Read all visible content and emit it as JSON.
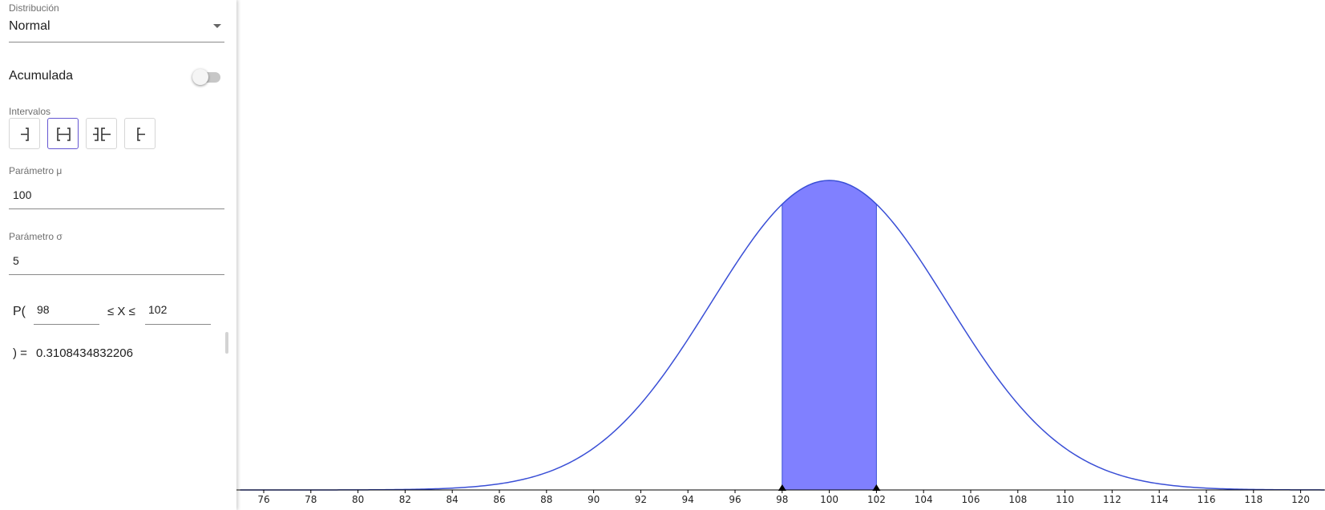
{
  "sidebar": {
    "distribution": {
      "label": "Distribución",
      "value": "Normal"
    },
    "cumulative": {
      "label": "Acumulada",
      "on": false
    },
    "intervals": {
      "label": "Intervalos",
      "buttons": [
        {
          "name": "left-sided",
          "selected": false
        },
        {
          "name": "two-sided",
          "selected": true
        },
        {
          "name": "two-tailed",
          "selected": false
        },
        {
          "name": "right-sided",
          "selected": false
        }
      ]
    },
    "mu": {
      "label": "Parámetro μ",
      "value": "100"
    },
    "sigma": {
      "label": "Parámetro σ",
      "value": "5"
    },
    "probability": {
      "prefix": "P(",
      "lower": "98",
      "middle": "≤ X ≤",
      "upper": "102",
      "result_prefix": ") =",
      "result": "0.3108434832206"
    }
  },
  "colors": {
    "curve": "#3a4fd6",
    "fill": "#8080ff",
    "axis": "#000000"
  },
  "chart_data": {
    "type": "area",
    "distribution": "normal",
    "mu": 100,
    "sigma": 5,
    "xlim": [
      75,
      121
    ],
    "shaded_interval": [
      98,
      102
    ],
    "x_ticks": [
      76,
      78,
      80,
      82,
      84,
      86,
      88,
      90,
      92,
      94,
      96,
      98,
      100,
      102,
      104,
      106,
      108,
      110,
      112,
      114,
      116,
      118,
      120
    ],
    "markers": [
      98,
      102
    ],
    "title": "",
    "xlabel": "",
    "ylabel": ""
  }
}
